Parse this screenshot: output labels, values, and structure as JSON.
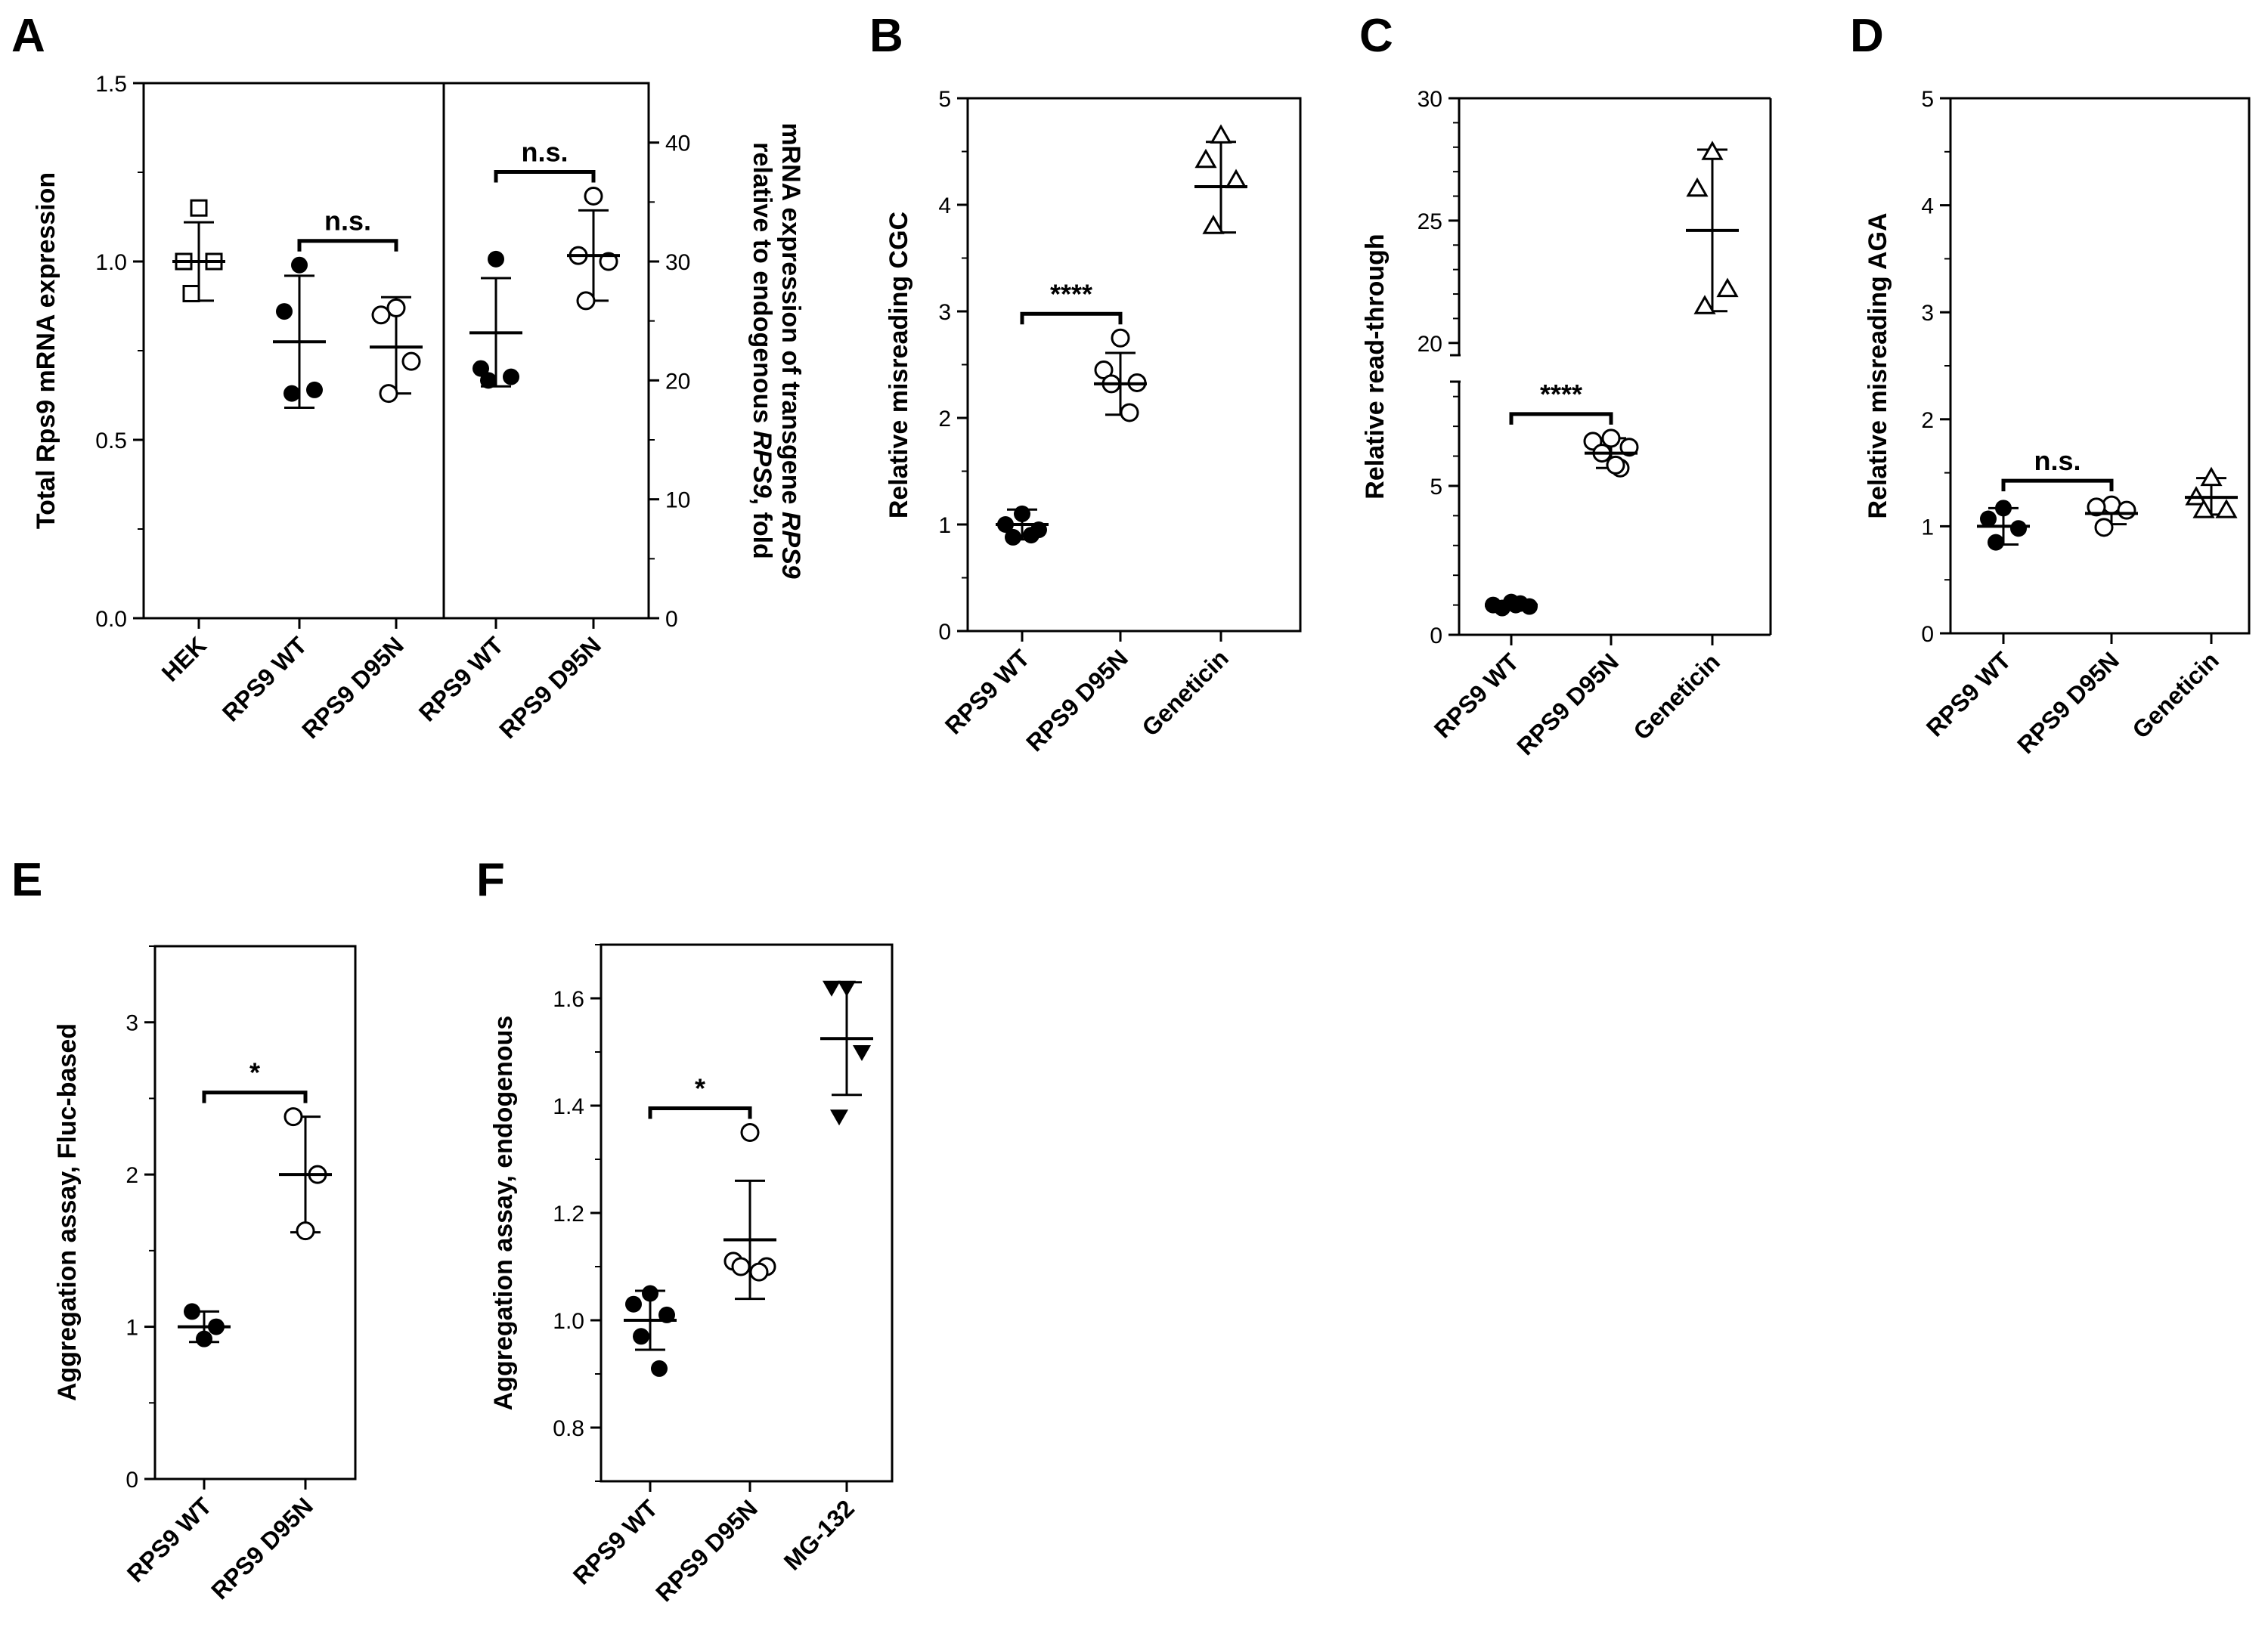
{
  "chart_data": [
    {
      "panel": "A",
      "type": "scatter",
      "ylabel": "Total Rps9 mRNA expression",
      "ylabel2": [
        "mRNA expression of transgene ",
        "RPS9",
        ""
      ],
      "ylabel2_line2": [
        "relative to endogenous ",
        "RPS9",
        ", fold"
      ],
      "ylim": [
        0,
        1.5
      ],
      "yticks": [
        "0.0",
        "0.5",
        "1.0",
        "1.5"
      ],
      "ylim2": [
        0,
        45
      ],
      "yticks2": [
        "0",
        "10",
        "20",
        "30",
        "40"
      ],
      "categories": [
        "HEK",
        "RPS9 WT",
        "RPS9 D95N",
        "RPS9 WT",
        "RPS9 D95N"
      ],
      "groups": [
        {
          "marker": "square",
          "axis": "left",
          "points": [
            1.15,
            1.0,
            1.0,
            0.91
          ],
          "mean": 1.0,
          "sd": [
            0.89,
            1.11
          ]
        },
        {
          "marker": "filled-circle",
          "axis": "left",
          "points": [
            0.99,
            0.86,
            0.64,
            0.63
          ],
          "mean": 0.775,
          "sd": [
            0.59,
            0.96
          ]
        },
        {
          "marker": "open-circle",
          "axis": "left",
          "points": [
            0.87,
            0.85,
            0.72,
            0.63
          ],
          "mean": 0.76,
          "sd": [
            0.63,
            0.9
          ]
        },
        {
          "marker": "filled-circle",
          "axis": "right",
          "points": [
            30.2,
            21.0,
            20.3,
            20.0
          ],
          "mean": 24.0,
          "sd": [
            19.5,
            28.6
          ]
        },
        {
          "marker": "open-circle",
          "axis": "right",
          "points": [
            35.5,
            30.5,
            30.0,
            26.7
          ],
          "mean": 30.5,
          "sd": [
            26.7,
            34.3
          ]
        }
      ],
      "significance": [
        {
          "from": 1,
          "to": 2,
          "label": "n.s."
        },
        {
          "from": 3,
          "to": 4,
          "label": "n.s."
        }
      ]
    },
    {
      "panel": "B",
      "type": "scatter",
      "ylabel": "Relative misreading CGC",
      "ylim": [
        0,
        5
      ],
      "yticks": [
        "0",
        "1",
        "2",
        "3",
        "4",
        "5"
      ],
      "categories": [
        "RPS9 WT",
        "RPS9 D95N",
        "Geneticin"
      ],
      "groups": [
        {
          "marker": "filled-circle",
          "points": [
            1.1,
            1.0,
            0.95,
            0.88,
            0.9
          ],
          "mean": 1.0,
          "sd": [
            0.86,
            1.14
          ]
        },
        {
          "marker": "open-circle",
          "points": [
            2.75,
            2.45,
            2.33,
            2.32,
            2.05
          ],
          "mean": 2.32,
          "sd": [
            2.03,
            2.61
          ]
        },
        {
          "marker": "open-triangle",
          "points": [
            4.65,
            4.42,
            4.23,
            3.8
          ],
          "mean": 4.17,
          "sd": [
            3.74,
            4.59
          ]
        }
      ],
      "significance": [
        {
          "from": 0,
          "to": 1,
          "label": "****"
        }
      ]
    },
    {
      "panel": "C",
      "type": "scatter",
      "ylabel": "Relative read-through",
      "ylim": [
        0,
        30
      ],
      "broken_axis": {
        "lower": [
          0,
          8.5
        ],
        "upper": [
          19.5,
          30
        ]
      },
      "yticks": [
        "0",
        "5",
        "20",
        "25",
        "30"
      ],
      "categories": [
        "RPS9 WT",
        "RPS9 D95N",
        "Geneticin"
      ],
      "groups": [
        {
          "marker": "filled-circle",
          "points": [
            1.1,
            1.0,
            0.95,
            0.9,
            1.05,
            1.0
          ],
          "mean": 1.0,
          "sd": [
            0.92,
            1.08
          ]
        },
        {
          "marker": "open-circle",
          "points": [
            6.6,
            6.5,
            6.3,
            6.1,
            5.6,
            5.7
          ],
          "mean": 6.1,
          "sd": [
            5.6,
            6.6
          ]
        },
        {
          "marker": "open-triangle",
          "points": [
            27.8,
            26.3,
            22.2,
            21.5
          ],
          "mean": 24.6,
          "sd": [
            21.3,
            27.9
          ]
        }
      ],
      "significance": [
        {
          "from": 0,
          "to": 1,
          "label": "****"
        }
      ]
    },
    {
      "panel": "D",
      "type": "scatter",
      "ylabel": "Relative misreading AGA",
      "ylim": [
        0,
        5
      ],
      "yticks": [
        "0",
        "1",
        "2",
        "3",
        "4",
        "5"
      ],
      "categories": [
        "RPS9 WT",
        "RPS9 D95N",
        "Geneticin"
      ],
      "groups": [
        {
          "marker": "filled-circle",
          "points": [
            1.17,
            1.07,
            0.98,
            0.85
          ],
          "mean": 1.0,
          "sd": [
            0.83,
            1.17
          ]
        },
        {
          "marker": "open-circle",
          "points": [
            1.2,
            1.18,
            1.15,
            0.99
          ],
          "mean": 1.12,
          "sd": [
            1.02,
            1.2
          ]
        },
        {
          "marker": "open-triangle",
          "points": [
            1.45,
            1.27,
            1.15,
            1.15
          ],
          "mean": 1.27,
          "sd": [
            1.11,
            1.45
          ]
        }
      ],
      "significance": [
        {
          "from": 0,
          "to": 1,
          "label": "n.s."
        }
      ]
    },
    {
      "panel": "E",
      "type": "scatter",
      "ylabel": "Aggregation assay, Fluc-based",
      "ylim": [
        0,
        3.5
      ],
      "yticks": [
        "0",
        "1",
        "2",
        "3"
      ],
      "categories": [
        "RPS9 WT",
        "RPS9 D95N"
      ],
      "groups": [
        {
          "marker": "filled-circle",
          "points": [
            1.1,
            1.0,
            0.92
          ],
          "mean": 1.0,
          "sd": [
            0.9,
            1.1
          ]
        },
        {
          "marker": "open-circle",
          "points": [
            2.38,
            2.0,
            1.63
          ],
          "mean": 2.0,
          "sd": [
            1.62,
            2.38
          ]
        }
      ],
      "significance": [
        {
          "from": 0,
          "to": 1,
          "label": "*"
        }
      ]
    },
    {
      "panel": "F",
      "type": "scatter",
      "ylabel": "Aggregation assay, endogenous",
      "ylim": [
        0.7,
        1.7
      ],
      "yticks": [
        "0.8",
        "1.0",
        "1.2",
        "1.4",
        "1.6"
      ],
      "categories": [
        "RPS9 WT",
        "RPS9 D95N",
        "MG-132"
      ],
      "groups": [
        {
          "marker": "filled-circle",
          "points": [
            1.05,
            1.03,
            1.01,
            0.97,
            0.91
          ],
          "mean": 1.0,
          "sd": [
            0.945,
            1.055
          ]
        },
        {
          "marker": "open-circle",
          "points": [
            1.35,
            1.11,
            1.1,
            1.1,
            1.09
          ],
          "mean": 1.15,
          "sd": [
            1.04,
            1.26
          ]
        },
        {
          "marker": "filled-triangle",
          "points": [
            1.62,
            1.62,
            1.5,
            1.38
          ],
          "mean": 1.525,
          "sd": [
            1.42,
            1.63
          ]
        }
      ],
      "significance": [
        {
          "from": 0,
          "to": 1,
          "label": "*"
        }
      ]
    }
  ]
}
